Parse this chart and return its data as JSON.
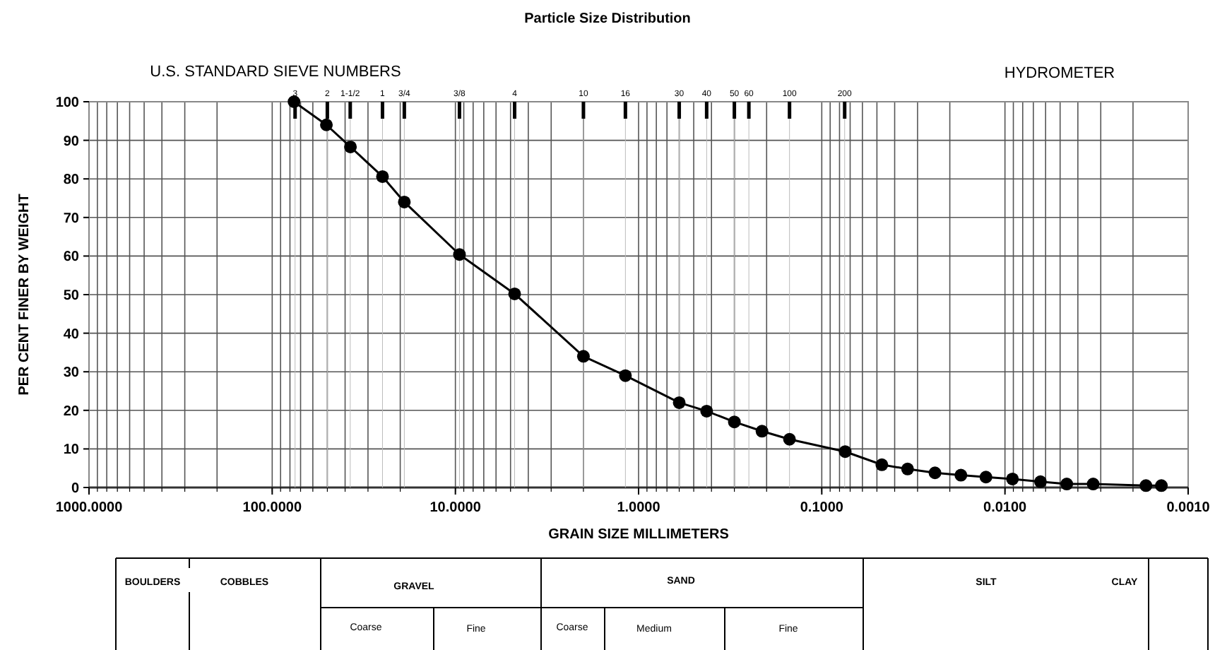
{
  "chart_data": {
    "type": "line",
    "title": "Particle Size Distribution",
    "xlabel": "GRAIN SIZE MILLIMETERS",
    "ylabel": "PER CENT FINER BY WEIGHT",
    "log": "x",
    "grid": true,
    "marker": "circle",
    "line_style": "solid",
    "xlim": [
      1000,
      0.001
    ],
    "xticks": [
      {
        "value": 1000,
        "label": "1000.0000"
      },
      {
        "value": 100,
        "label": "100.0000"
      },
      {
        "value": 10,
        "label": "10.0000"
      },
      {
        "value": 1,
        "label": "1.0000"
      },
      {
        "value": 0.1,
        "label": "0.1000"
      },
      {
        "value": 0.01,
        "label": "0.0100"
      },
      {
        "value": 0.001,
        "label": "0.0010"
      }
    ],
    "ylim": [
      0,
      100
    ],
    "yticks": [
      0,
      10,
      20,
      30,
      40,
      50,
      60,
      70,
      80,
      90,
      100
    ],
    "x": [
      76,
      50.6,
      37.4,
      25,
      19,
      9.5,
      4.75,
      2,
      1.18,
      0.6,
      0.425,
      0.3,
      0.212,
      0.15,
      0.0745,
      0.047,
      0.034,
      0.0241,
      0.0174,
      0.0127,
      0.0091,
      0.0064,
      0.0046,
      0.0033,
      0.0017,
      0.0014
    ],
    "series": [
      {
        "color": "#000000",
        "values": [
          100,
          94,
          88.3,
          80.6,
          74,
          60.4,
          50.2,
          34,
          29,
          22,
          19.8,
          17,
          14.6,
          12.5,
          9.3,
          5.9,
          4.8,
          3.8,
          3.2,
          2.7,
          2.2,
          1.5,
          0.9,
          0.9,
          0.5,
          0.5
        ]
      }
    ],
    "ref_lines": [
      {
        "axis": "x",
        "value": 75
      },
      {
        "axis": "x",
        "value": 50
      },
      {
        "axis": "x",
        "value": 37.5
      },
      {
        "axis": "x",
        "value": 25
      },
      {
        "axis": "x",
        "value": 19
      },
      {
        "axis": "x",
        "value": 9.5
      },
      {
        "axis": "x",
        "value": 4.75
      },
      {
        "axis": "x",
        "value": 2
      },
      {
        "axis": "x",
        "value": 1.18
      },
      {
        "axis": "x",
        "value": 0.6
      },
      {
        "axis": "x",
        "value": 0.425
      },
      {
        "axis": "x",
        "value": 0.3
      },
      {
        "axis": "x",
        "value": 0.25
      },
      {
        "axis": "x",
        "value": 0.15
      },
      {
        "axis": "x",
        "value": 0.075
      }
    ],
    "annotations": [
      "3",
      "2",
      "1-1/2",
      "1",
      "3/4",
      "3/8",
      "4",
      "10",
      "16",
      "30",
      "40",
      "50",
      "60",
      "100",
      "200",
      "U.S. STANDARD SIEVE NUMBERS",
      "HYDROMETER",
      "BOULDERS",
      "COBBLES",
      "GRAVEL",
      "Coarse",
      "Fine",
      "SAND",
      "Coarse",
      "Medium",
      "Fine",
      "SILT",
      "CLAY"
    ]
  }
}
